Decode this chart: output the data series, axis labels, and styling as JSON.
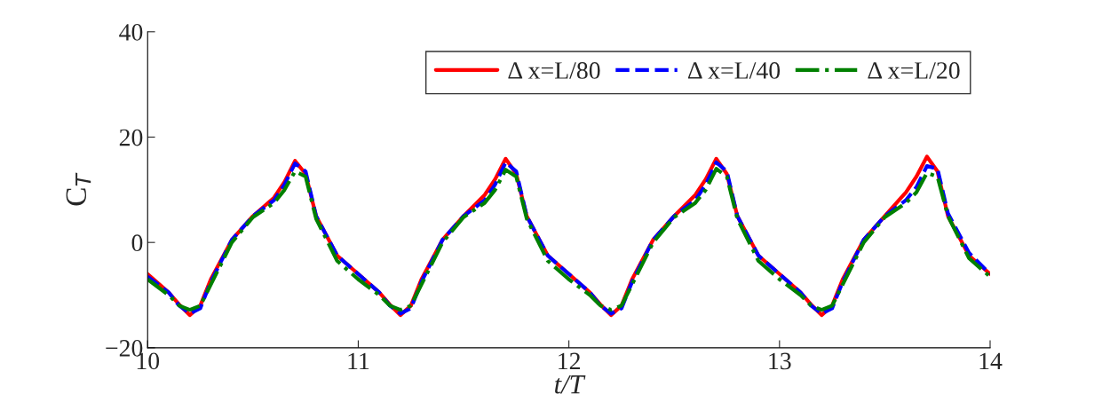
{
  "chart_data": {
    "type": "line",
    "xlabel": "t/T",
    "ylabel": "C$_{T}$",
    "x": [
      10.0,
      10.1,
      10.15,
      10.2,
      10.25,
      10.3,
      10.4,
      10.5,
      10.6,
      10.65,
      10.7,
      10.75,
      10.8,
      10.9,
      11.0,
      11.1,
      11.15,
      11.2,
      11.25,
      11.3,
      11.4,
      11.5,
      11.6,
      11.65,
      11.7,
      11.75,
      11.8,
      11.9,
      12.0,
      12.1,
      12.15,
      12.2,
      12.25,
      12.3,
      12.4,
      12.5,
      12.6,
      12.65,
      12.7,
      12.75,
      12.8,
      12.9,
      13.0,
      13.1,
      13.15,
      13.2,
      13.25,
      13.3,
      13.4,
      13.5,
      13.6,
      13.65,
      13.7,
      13.75,
      13.8,
      13.9,
      14.0
    ],
    "series": [
      {
        "name": "Δ x=L/80",
        "color": "#ff0000",
        "line_style": "solid",
        "values": [
          -6,
          -9.5,
          -11.8,
          -13.8,
          -12,
          -7,
          0.5,
          5,
          8.5,
          11.5,
          15.5,
          13,
          5,
          -2.5,
          -6,
          -9.5,
          -11.8,
          -13.8,
          -12,
          -7,
          0.5,
          5,
          9,
          12,
          15.9,
          13,
          5,
          -2.5,
          -6,
          -9.5,
          -11.8,
          -13.8,
          -12,
          -7,
          0.5,
          5,
          9,
          12,
          15.9,
          13,
          5,
          -2.5,
          -6,
          -9.5,
          -11.8,
          -13.8,
          -12,
          -7,
          0.5,
          5,
          9.5,
          12.5,
          16.3,
          13.5,
          5,
          -2.5,
          -6
        ]
      },
      {
        "name": "Δ x=L/40",
        "color": "#0000ff",
        "line_style": "dashed",
        "values": [
          -6.5,
          -9.5,
          -12,
          -13.5,
          -12.5,
          -7.5,
          0.5,
          5,
          8,
          11,
          15,
          13.5,
          5,
          -2.5,
          -6,
          -9.5,
          -12,
          -13.5,
          -12.5,
          -7.5,
          0.5,
          5,
          8,
          11,
          15.2,
          13.5,
          5,
          -2.5,
          -6,
          -9.5,
          -12,
          -13.5,
          -12.5,
          -7.5,
          0.5,
          5,
          8,
          11,
          15.2,
          13.5,
          5,
          -2.5,
          -6,
          -9.5,
          -12,
          -13.5,
          -12.5,
          -7.5,
          0.5,
          5,
          8,
          10.5,
          14.5,
          14,
          5.5,
          -2,
          -6
        ]
      },
      {
        "name": "Δ x=L/20",
        "color": "#008000",
        "line_style": "dashdot",
        "values": [
          -7,
          -10,
          -12,
          -12.8,
          -12,
          -8,
          0,
          4.8,
          7.5,
          10,
          13.5,
          12.5,
          4.5,
          -3.5,
          -7,
          -10,
          -12,
          -12.8,
          -12,
          -8,
          0,
          4.8,
          7.5,
          10,
          13.8,
          12.5,
          4.5,
          -3.5,
          -7,
          -10,
          -12,
          -12.8,
          -12,
          -8,
          0,
          4.8,
          7.5,
          10,
          14,
          12.5,
          4.5,
          -3.5,
          -7,
          -10,
          -12,
          -12.8,
          -12,
          -8,
          0,
          4.8,
          7.5,
          9.5,
          13.2,
          12.5,
          5,
          -3,
          -6.5
        ]
      }
    ],
    "xlim": [
      10,
      14
    ],
    "xticks": [
      10,
      11,
      12,
      13,
      14
    ],
    "ylim": [
      -20,
      40
    ],
    "yticks": [
      {
        "value": -20,
        "label": "−20"
      },
      0,
      20,
      40
    ],
    "grid": false,
    "legend": "top right"
  }
}
